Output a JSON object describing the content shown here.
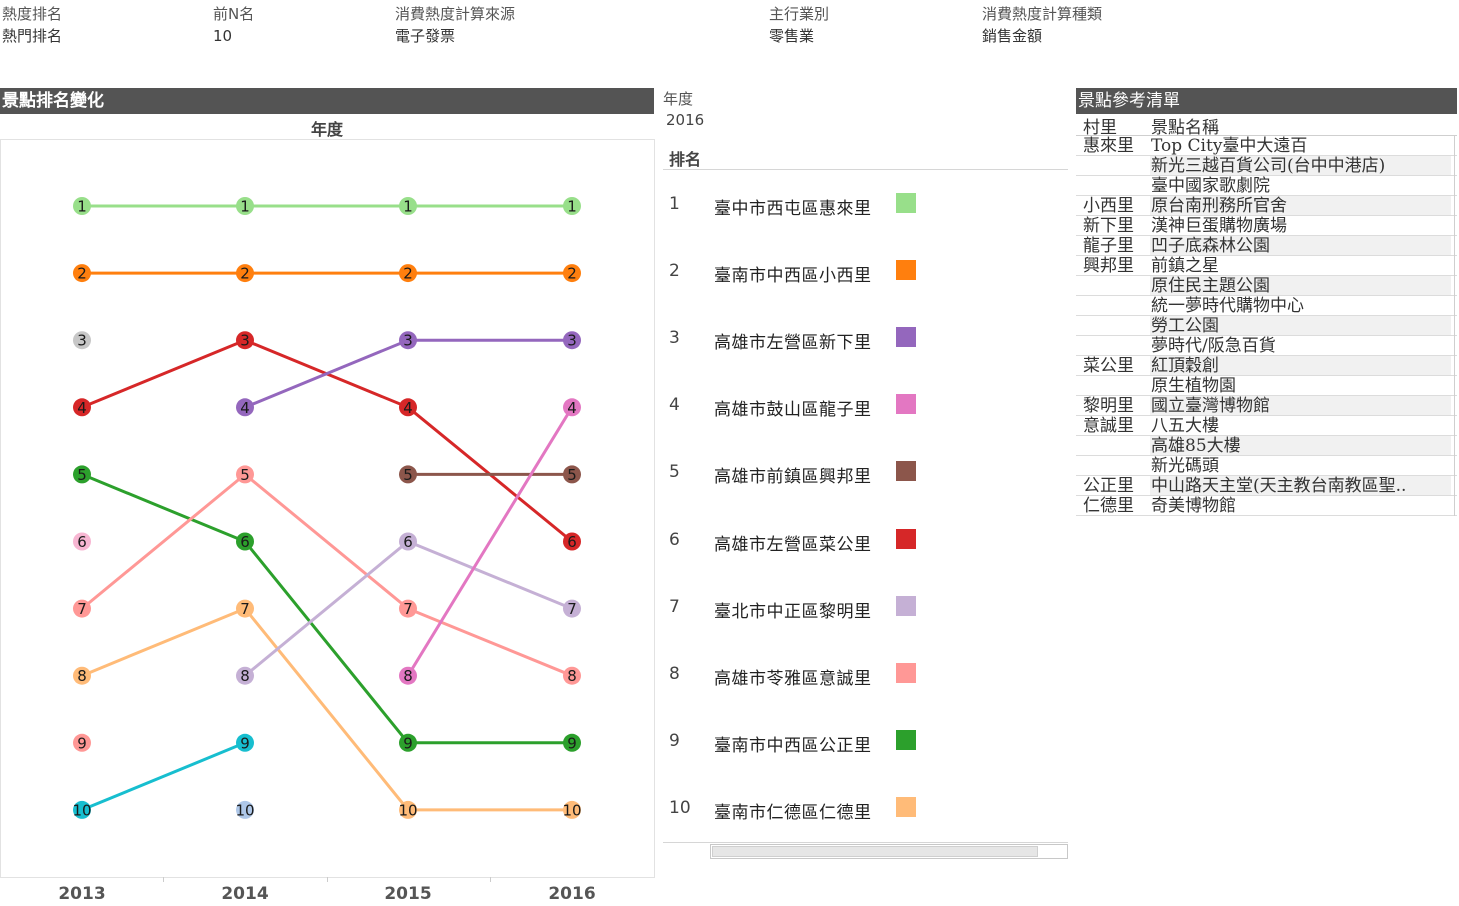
{
  "filters": [
    {
      "label": "熱度排名",
      "value": "熱門排名"
    },
    {
      "label": "前N名",
      "value": "10"
    },
    {
      "label": "消費熱度計算來源",
      "value": "電子發票"
    },
    {
      "label": "主行業別",
      "value": "零售業"
    },
    {
      "label": "消費熱度計算種類",
      "value": "銷售金額"
    }
  ],
  "chart_panel": {
    "title": "景點排名變化"
  },
  "chart_data": {
    "type": "line",
    "title": "年度",
    "x": [
      "2013",
      "2014",
      "2015",
      "2016"
    ],
    "ylim": [
      1,
      10
    ],
    "grid": false,
    "series": [
      {
        "color": "#98df8a",
        "values": [
          1,
          1,
          1,
          1
        ]
      },
      {
        "color": "#ff7f0e",
        "values": [
          2,
          2,
          2,
          2
        ]
      },
      {
        "color": "#c7c7c7",
        "values": [
          3,
          null,
          null,
          null
        ]
      },
      {
        "color": "#d62728",
        "values": [
          4,
          3,
          4,
          6
        ]
      },
      {
        "color": "#2ca02c",
        "values": [
          5,
          6,
          9,
          9
        ]
      },
      {
        "color": "#f7b6d2",
        "values": [
          6,
          null,
          null,
          null
        ]
      },
      {
        "color": "#ff9896",
        "values": [
          7,
          5,
          7,
          8
        ]
      },
      {
        "color": "#ffbb78",
        "values": [
          8,
          7,
          10,
          10
        ]
      },
      {
        "color": "#ff9896",
        "values": [
          9,
          null,
          null,
          null
        ]
      },
      {
        "color": "#17becf",
        "values": [
          10,
          9,
          null,
          null
        ]
      },
      {
        "color": "#9467bd",
        "values": [
          null,
          4,
          3,
          3
        ]
      },
      {
        "color": "#c5b0d5",
        "values": [
          null,
          8,
          6,
          7
        ]
      },
      {
        "color": "#aec7e8",
        "values": [
          null,
          10,
          null,
          null
        ]
      },
      {
        "color": "#8c564b",
        "values": [
          null,
          null,
          5,
          5
        ]
      },
      {
        "color": "#e377c2",
        "values": [
          null,
          null,
          8,
          4
        ]
      }
    ]
  },
  "ranking_panel": {
    "year_label": "年度",
    "year_value": "2016",
    "header": "排名",
    "items": [
      {
        "rank": "1",
        "name": "臺中市西屯區惠來里",
        "color": "#98df8a"
      },
      {
        "rank": "2",
        "name": "臺南市中西區小西里",
        "color": "#ff7f0e"
      },
      {
        "rank": "3",
        "name": "高雄市左營區新下里",
        "color": "#9467bd"
      },
      {
        "rank": "4",
        "name": "高雄市鼓山區龍子里",
        "color": "#e377c2"
      },
      {
        "rank": "5",
        "name": "高雄市前鎮區興邦里",
        "color": "#8c564b"
      },
      {
        "rank": "6",
        "name": "高雄市左營區菜公里",
        "color": "#d62728"
      },
      {
        "rank": "7",
        "name": "臺北市中正區黎明里",
        "color": "#c5b0d5"
      },
      {
        "rank": "8",
        "name": "高雄市苓雅區意誠里",
        "color": "#ff9896"
      },
      {
        "rank": "9",
        "name": "臺南市中西區公正里",
        "color": "#2ca02c"
      },
      {
        "rank": "10",
        "name": "臺南市仁德區仁德里",
        "color": "#ffbb78"
      }
    ]
  },
  "reference_panel": {
    "title": "景點參考清單",
    "col_village": "村里",
    "col_spot": "景點名稱",
    "rows": [
      {
        "village": "惠來里",
        "spot": "Top City臺中大遠百"
      },
      {
        "village": "",
        "spot": "新光三越百貨公司(台中中港店)"
      },
      {
        "village": "",
        "spot": "臺中國家歌劇院"
      },
      {
        "village": "小西里",
        "spot": "原台南刑務所官舍"
      },
      {
        "village": "新下里",
        "spot": "漢神巨蛋購物廣場"
      },
      {
        "village": "龍子里",
        "spot": "凹子底森林公園"
      },
      {
        "village": "興邦里",
        "spot": "前鎮之星"
      },
      {
        "village": "",
        "spot": "原住民主題公園"
      },
      {
        "village": "",
        "spot": "統一夢時代購物中心"
      },
      {
        "village": "",
        "spot": "勞工公園"
      },
      {
        "village": "",
        "spot": "夢時代/阪急百貨"
      },
      {
        "village": "菜公里",
        "spot": "紅頂穀創"
      },
      {
        "village": "",
        "spot": "原生植物園"
      },
      {
        "village": "黎明里",
        "spot": "國立臺灣博物館"
      },
      {
        "village": "意誠里",
        "spot": "八五大樓"
      },
      {
        "village": "",
        "spot": "高雄85大樓"
      },
      {
        "village": "",
        "spot": "新光碼頭"
      },
      {
        "village": "公正里",
        "spot": "中山路天主堂(天主教台南教區聖.."
      },
      {
        "village": "仁德里",
        "spot": "奇美博物館"
      }
    ]
  }
}
